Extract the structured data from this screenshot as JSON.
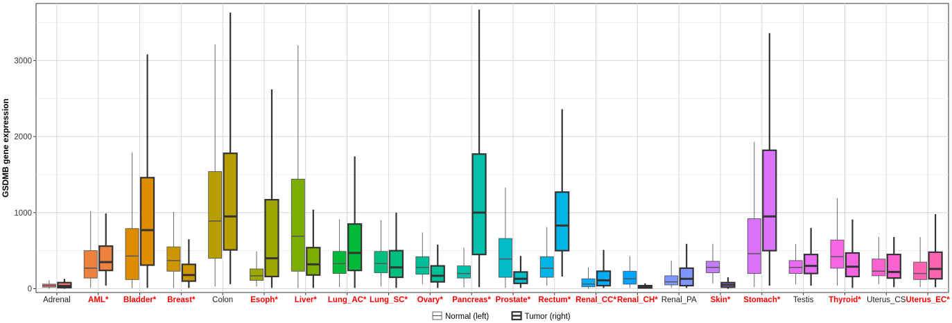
{
  "chart_data": {
    "type": "boxplot",
    "ylabel": "GSDMB gene expression",
    "ylim": [
      -50,
      3750
    ],
    "yticks": [
      0,
      1000,
      2000,
      3000
    ],
    "legend": {
      "position": "bottom",
      "entries": [
        {
          "label": "Normal (left)",
          "style": "thin"
        },
        {
          "label": "Tumor (right)",
          "style": "bold"
        }
      ]
    },
    "categories": [
      {
        "label": "Adrenal",
        "highlight": false,
        "color": "#F8766D",
        "normal": {
          "min": 0,
          "q1": 20,
          "median": 40,
          "q3": 60,
          "max": 110
        },
        "tumor": {
          "min": 0,
          "q1": 15,
          "median": 35,
          "q3": 80,
          "max": 130
        }
      },
      {
        "label": "AML*",
        "highlight": true,
        "color": "#ED813E",
        "normal": {
          "min": 10,
          "q1": 140,
          "median": 270,
          "q3": 500,
          "max": 1020
        },
        "tumor": {
          "min": 40,
          "q1": 240,
          "median": 350,
          "q3": 560,
          "max": 990
        }
      },
      {
        "label": "Bladder*",
        "highlight": true,
        "color": "#DE8C00",
        "normal": {
          "min": 10,
          "q1": 120,
          "median": 430,
          "q3": 790,
          "max": 1790
        },
        "tumor": {
          "min": 10,
          "q1": 310,
          "median": 770,
          "q3": 1460,
          "max": 3080
        }
      },
      {
        "label": "Breast*",
        "highlight": true,
        "color": "#CD9600",
        "normal": {
          "min": 10,
          "q1": 230,
          "median": 370,
          "q3": 550,
          "max": 1010
        },
        "tumor": {
          "min": 10,
          "q1": 100,
          "median": 180,
          "q3": 320,
          "max": 650
        }
      },
      {
        "label": "Colon",
        "highlight": false,
        "color": "#B79F00",
        "normal": {
          "min": 30,
          "q1": 400,
          "median": 890,
          "q3": 1540,
          "max": 3210
        },
        "tumor": {
          "min": 60,
          "q1": 510,
          "median": 950,
          "q3": 1780,
          "max": 3630
        }
      },
      {
        "label": "Esoph*",
        "highlight": true,
        "color": "#9EA700",
        "normal": {
          "min": 30,
          "q1": 110,
          "median": 170,
          "q3": 260,
          "max": 490
        },
        "tumor": {
          "min": 10,
          "q1": 160,
          "median": 400,
          "q3": 1170,
          "max": 2620
        }
      },
      {
        "label": "Liver*",
        "highlight": true,
        "color": "#7CAE00",
        "normal": {
          "min": 10,
          "q1": 230,
          "median": 690,
          "q3": 1440,
          "max": 3200
        },
        "tumor": {
          "min": 10,
          "q1": 180,
          "median": 320,
          "q3": 540,
          "max": 1040
        }
      },
      {
        "label": "Lung_AC*",
        "highlight": true,
        "color": "#00BA38",
        "normal": {
          "min": 20,
          "q1": 200,
          "median": 330,
          "q3": 490,
          "max": 910
        },
        "tumor": {
          "min": 10,
          "q1": 240,
          "median": 470,
          "q3": 850,
          "max": 1740
        }
      },
      {
        "label": "Lung_SC*",
        "highlight": true,
        "color": "#00BF7D",
        "normal": {
          "min": 30,
          "q1": 210,
          "median": 330,
          "q3": 490,
          "max": 900
        },
        "tumor": {
          "min": 10,
          "q1": 150,
          "median": 280,
          "q3": 500,
          "max": 1000
        }
      },
      {
        "label": "Ovary*",
        "highlight": true,
        "color": "#00C097",
        "normal": {
          "min": 60,
          "q1": 190,
          "median": 280,
          "q3": 420,
          "max": 740
        },
        "tumor": {
          "min": 10,
          "q1": 90,
          "median": 170,
          "q3": 300,
          "max": 580
        }
      },
      {
        "label": "Pancreas*",
        "highlight": true,
        "color": "#00BFAB",
        "normal": {
          "min": 20,
          "q1": 140,
          "median": 200,
          "q3": 300,
          "max": 540
        },
        "tumor": {
          "min": 20,
          "q1": 450,
          "median": 1000,
          "q3": 1770,
          "max": 3670
        }
      },
      {
        "label": "Prostate*",
        "highlight": true,
        "color": "#00BCC9",
        "normal": {
          "min": 10,
          "q1": 150,
          "median": 390,
          "q3": 660,
          "max": 1330
        },
        "tumor": {
          "min": 10,
          "q1": 70,
          "median": 130,
          "q3": 220,
          "max": 430
        }
      },
      {
        "label": "Rectum*",
        "highlight": true,
        "color": "#00B4E4",
        "normal": {
          "min": 40,
          "q1": 150,
          "median": 270,
          "q3": 420,
          "max": 810
        },
        "tumor": {
          "min": 160,
          "q1": 500,
          "median": 830,
          "q3": 1270,
          "max": 2360
        }
      },
      {
        "label": "Renal_CC*",
        "highlight": true,
        "color": "#00ADF6",
        "normal": {
          "min": 0,
          "q1": 25,
          "median": 60,
          "q3": 130,
          "max": 280
        },
        "tumor": {
          "min": 10,
          "q1": 40,
          "median": 110,
          "q3": 230,
          "max": 510
        }
      },
      {
        "label": "Renal_CH*",
        "highlight": true,
        "color": "#00A3FF",
        "normal": {
          "min": 10,
          "q1": 60,
          "median": 130,
          "q3": 230,
          "max": 430
        },
        "tumor": {
          "min": 0,
          "q1": 10,
          "median": 20,
          "q3": 40,
          "max": 70
        }
      },
      {
        "label": "Renal_PA",
        "highlight": false,
        "color": "#7F96FF",
        "normal": {
          "min": 10,
          "q1": 50,
          "median": 90,
          "q3": 170,
          "max": 370
        },
        "tumor": {
          "min": 10,
          "q1": 40,
          "median": 130,
          "q3": 270,
          "max": 590
        }
      },
      {
        "label": "Skin*",
        "highlight": true,
        "color": "#C77CFF",
        "normal": {
          "min": 70,
          "q1": 210,
          "median": 280,
          "q3": 360,
          "max": 590
        },
        "tumor": {
          "min": 0,
          "q1": 20,
          "median": 50,
          "q3": 80,
          "max": 150
        }
      },
      {
        "label": "Stomach*",
        "highlight": true,
        "color": "#DB72FB",
        "normal": {
          "min": 20,
          "q1": 200,
          "median": 460,
          "q3": 920,
          "max": 1930
        },
        "tumor": {
          "min": 40,
          "q1": 500,
          "median": 950,
          "q3": 1820,
          "max": 3360
        }
      },
      {
        "label": "Testis",
        "highlight": false,
        "color": "#E76BF3",
        "normal": {
          "min": 60,
          "q1": 200,
          "median": 280,
          "q3": 370,
          "max": 590
        },
        "tumor": {
          "min": 40,
          "q1": 200,
          "median": 300,
          "q3": 450,
          "max": 800
        }
      },
      {
        "label": "Thyroid*",
        "highlight": true,
        "color": "#F564E3",
        "normal": {
          "min": 40,
          "q1": 270,
          "median": 420,
          "q3": 640,
          "max": 1190
        },
        "tumor": {
          "min": 10,
          "q1": 160,
          "median": 290,
          "q3": 470,
          "max": 910
        }
      },
      {
        "label": "Uterus_CS",
        "highlight": false,
        "color": "#FD61D1",
        "normal": {
          "min": 60,
          "q1": 170,
          "median": 230,
          "q3": 390,
          "max": 680
        },
        "tumor": {
          "min": 20,
          "q1": 140,
          "median": 220,
          "q3": 450,
          "max": 680
        }
      },
      {
        "label": "Uterus_EC*",
        "highlight": true,
        "color": "#FF64B0",
        "normal": {
          "min": 20,
          "q1": 120,
          "median": 200,
          "q3": 350,
          "max": 680
        },
        "tumor": {
          "min": 20,
          "q1": 130,
          "median": 260,
          "q3": 480,
          "max": 980
        }
      }
    ]
  }
}
